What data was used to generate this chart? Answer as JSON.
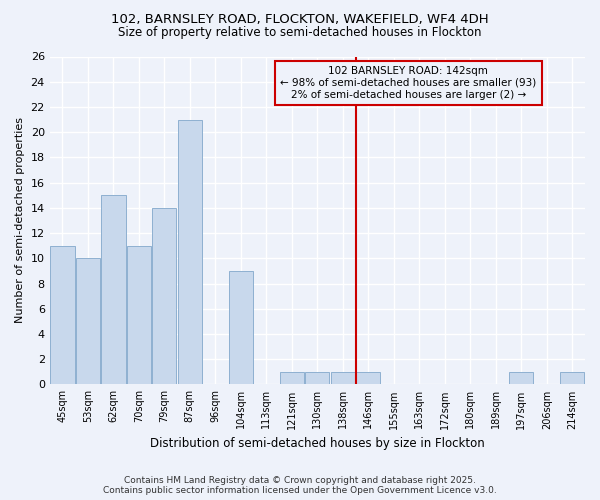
{
  "title1": "102, BARNSLEY ROAD, FLOCKTON, WAKEFIELD, WF4 4DH",
  "title2": "Size of property relative to semi-detached houses in Flockton",
  "xlabel": "Distribution of semi-detached houses by size in Flockton",
  "ylabel": "Number of semi-detached properties",
  "categories": [
    "45sqm",
    "53sqm",
    "62sqm",
    "70sqm",
    "79sqm",
    "87sqm",
    "96sqm",
    "104sqm",
    "113sqm",
    "121sqm",
    "130sqm",
    "138sqm",
    "146sqm",
    "155sqm",
    "163sqm",
    "172sqm",
    "180sqm",
    "189sqm",
    "197sqm",
    "206sqm",
    "214sqm"
  ],
  "values": [
    11,
    10,
    15,
    11,
    14,
    21,
    0,
    9,
    0,
    1,
    1,
    1,
    1,
    0,
    0,
    0,
    0,
    0,
    1,
    0,
    1
  ],
  "bar_color": "#C8D8EC",
  "bar_edge_color": "#8EB0D0",
  "vline_color": "#CC0000",
  "annotation_title": "102 BARNSLEY ROAD: 142sqm",
  "annotation_line1": "← 98% of semi-detached houses are smaller (93)",
  "annotation_line2": "2% of semi-detached houses are larger (2) →",
  "ylim": [
    0,
    26
  ],
  "yticks": [
    0,
    2,
    4,
    6,
    8,
    10,
    12,
    14,
    16,
    18,
    20,
    22,
    24,
    26
  ],
  "footer1": "Contains HM Land Registry data © Crown copyright and database right 2025.",
  "footer2": "Contains public sector information licensed under the Open Government Licence v3.0.",
  "bg_color": "#EEF2FA",
  "grid_color": "#FFFFFF"
}
